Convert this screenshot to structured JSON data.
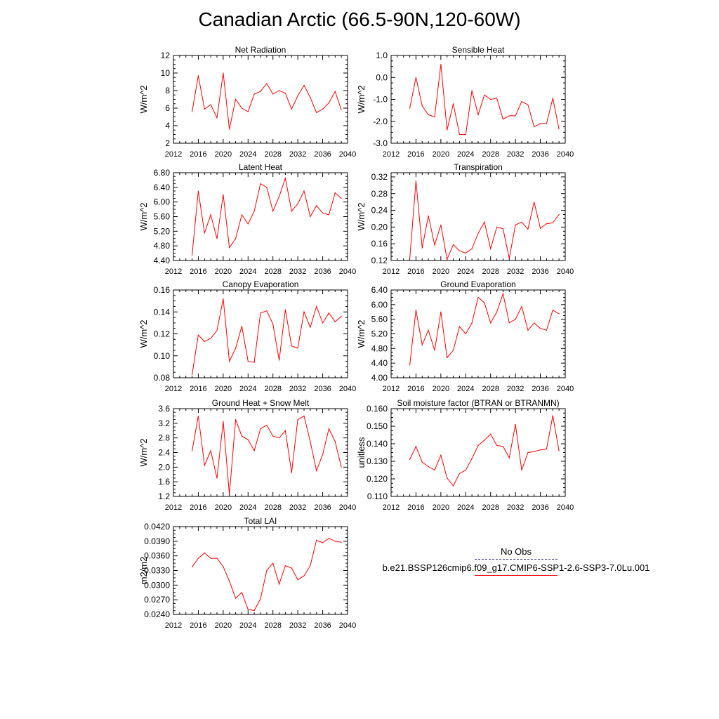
{
  "page_title": "Canadian Arctic (66.5-90N,120-60W)",
  "legend": {
    "obs_label": "No Obs",
    "model_label": "b.e21.BSSP126cmip6.f09_g17.CMIP6-SSP1-2.6-SSP3-7.0Lu.001",
    "obs_color": "#3a3aa0",
    "model_color": "#ff0000"
  },
  "chart_data": [
    {
      "type": "line",
      "title": "Net Radiation",
      "ylabel": "W/m^2",
      "xlim": [
        2012,
        2040
      ],
      "xticks": [
        "2012",
        "2016",
        "2020",
        "2024",
        "2028",
        "2032",
        "2036",
        "2040"
      ],
      "ylim": [
        2,
        12
      ],
      "yticks": [
        "2",
        "4",
        "6",
        "8",
        "10",
        "12"
      ],
      "series": [
        {
          "color": "#ff0000",
          "x": [
            2015,
            2016,
            2017,
            2018,
            2019,
            2020,
            2021,
            2022,
            2023,
            2024,
            2025,
            2026,
            2027,
            2028,
            2029,
            2030,
            2031,
            2032,
            2033,
            2034,
            2035,
            2036,
            2037,
            2038,
            2039
          ],
          "values": [
            5.6,
            9.7,
            5.9,
            6.4,
            4.9,
            10.0,
            3.6,
            7.0,
            6.0,
            5.6,
            7.6,
            7.9,
            8.8,
            7.6,
            8.0,
            7.7,
            5.9,
            7.4,
            8.6,
            7.2,
            5.5,
            5.9,
            6.6,
            7.9,
            5.8
          ]
        }
      ]
    },
    {
      "type": "line",
      "title": "Sensible Heat",
      "ylabel": "W/m^2",
      "xlim": [
        2012,
        2040
      ],
      "xticks": [
        "2012",
        "2016",
        "2020",
        "2024",
        "2028",
        "2032",
        "2036",
        "2040"
      ],
      "ylim": [
        -3.0,
        1.0
      ],
      "yticks": [
        "-3.0",
        "-2.0",
        "-1.0",
        "0.0",
        "1.0"
      ],
      "series": [
        {
          "color": "#ff0000",
          "x": [
            2015,
            2016,
            2017,
            2018,
            2019,
            2020,
            2021,
            2022,
            2023,
            2024,
            2025,
            2026,
            2027,
            2028,
            2029,
            2030,
            2031,
            2032,
            2033,
            2034,
            2035,
            2036,
            2037,
            2038,
            2039
          ],
          "values": [
            -1.4,
            0.0,
            -1.3,
            -1.7,
            -1.8,
            0.6,
            -2.4,
            -1.2,
            -2.6,
            -2.6,
            -0.6,
            -1.7,
            -0.8,
            -1.0,
            -0.95,
            -1.9,
            -1.75,
            -1.75,
            -1.1,
            -1.25,
            -2.25,
            -2.1,
            -2.1,
            -0.95,
            -2.35
          ]
        }
      ]
    },
    {
      "type": "line",
      "title": "Latent Heat",
      "ylabel": "W/m^2",
      "xlim": [
        2012,
        2040
      ],
      "xticks": [
        "2012",
        "2016",
        "2020",
        "2024",
        "2028",
        "2032",
        "2036",
        "2040"
      ],
      "ylim": [
        4.4,
        6.8
      ],
      "yticks": [
        "4.40",
        "4.80",
        "5.20",
        "5.60",
        "6.00",
        "6.40",
        "6.80"
      ],
      "series": [
        {
          "color": "#ff0000",
          "x": [
            2015,
            2016,
            2017,
            2018,
            2019,
            2020,
            2021,
            2022,
            2023,
            2024,
            2025,
            2026,
            2027,
            2028,
            2029,
            2030,
            2031,
            2032,
            2033,
            2034,
            2035,
            2036,
            2037,
            2038,
            2039
          ],
          "values": [
            4.55,
            6.3,
            5.15,
            5.65,
            5.0,
            6.2,
            4.75,
            5.0,
            5.65,
            5.4,
            5.75,
            6.5,
            6.4,
            5.75,
            6.15,
            6.65,
            5.75,
            5.95,
            6.3,
            5.6,
            5.9,
            5.7,
            5.65,
            6.25,
            6.1
          ]
        }
      ]
    },
    {
      "type": "line",
      "title": "Transpiration",
      "ylabel": "W/m^2",
      "xlim": [
        2012,
        2040
      ],
      "xticks": [
        "2012",
        "2016",
        "2020",
        "2024",
        "2028",
        "2032",
        "2036",
        "2040"
      ],
      "ylim": [
        0.12,
        0.33
      ],
      "yticks": [
        "0.12",
        "0.16",
        "0.20",
        "0.24",
        "0.28",
        "0.32"
      ],
      "series": [
        {
          "color": "#ff0000",
          "x": [
            2015,
            2016,
            2017,
            2018,
            2019,
            2020,
            2021,
            2022,
            2023,
            2024,
            2025,
            2026,
            2027,
            2028,
            2029,
            2030,
            2031,
            2032,
            2033,
            2034,
            2035,
            2036,
            2037,
            2038,
            2039
          ],
          "values": [
            0.125,
            0.31,
            0.15,
            0.227,
            0.157,
            0.205,
            0.123,
            0.158,
            0.143,
            0.138,
            0.148,
            0.185,
            0.212,
            0.148,
            0.2,
            0.196,
            0.125,
            0.205,
            0.212,
            0.195,
            0.26,
            0.197,
            0.208,
            0.21,
            0.23
          ]
        }
      ]
    },
    {
      "type": "line",
      "title": "Canopy Evaporation",
      "ylabel": "W/m^2",
      "xlim": [
        2012,
        2040
      ],
      "xticks": [
        "2012",
        "2016",
        "2020",
        "2024",
        "2028",
        "2032",
        "2036",
        "2040"
      ],
      "ylim": [
        0.08,
        0.16
      ],
      "yticks": [
        "0.08",
        "0.10",
        "0.12",
        "0.14",
        "0.16"
      ],
      "series": [
        {
          "color": "#ff0000",
          "x": [
            2015,
            2016,
            2017,
            2018,
            2019,
            2020,
            2021,
            2022,
            2023,
            2024,
            2025,
            2026,
            2027,
            2028,
            2029,
            2030,
            2031,
            2032,
            2033,
            2034,
            2035,
            2036,
            2037,
            2038,
            2039
          ],
          "values": [
            0.083,
            0.119,
            0.113,
            0.116,
            0.123,
            0.152,
            0.095,
            0.107,
            0.127,
            0.095,
            0.094,
            0.139,
            0.141,
            0.129,
            0.096,
            0.142,
            0.109,
            0.107,
            0.14,
            0.126,
            0.145,
            0.13,
            0.139,
            0.131,
            0.136
          ]
        }
      ]
    },
    {
      "type": "line",
      "title": "Ground Evaporation",
      "ylabel": "W/m^2",
      "xlim": [
        2012,
        2040
      ],
      "xticks": [
        "2012",
        "2016",
        "2020",
        "2024",
        "2028",
        "2032",
        "2036",
        "2040"
      ],
      "ylim": [
        4.0,
        6.4
      ],
      "yticks": [
        "4.00",
        "4.40",
        "4.80",
        "5.20",
        "5.60",
        "6.00",
        "6.40"
      ],
      "series": [
        {
          "color": "#ff0000",
          "x": [
            2015,
            2016,
            2017,
            2018,
            2019,
            2020,
            2021,
            2022,
            2023,
            2024,
            2025,
            2026,
            2027,
            2028,
            2029,
            2030,
            2031,
            2032,
            2033,
            2034,
            2035,
            2036,
            2037,
            2038,
            2039
          ],
          "values": [
            4.35,
            5.85,
            4.9,
            5.3,
            4.75,
            5.8,
            4.55,
            4.75,
            5.4,
            5.2,
            5.5,
            6.2,
            6.05,
            5.5,
            5.8,
            6.3,
            5.5,
            5.6,
            5.95,
            5.3,
            5.5,
            5.35,
            5.3,
            5.85,
            5.75
          ]
        }
      ]
    },
    {
      "type": "line",
      "title": "Ground Heat + Snow Melt",
      "ylabel": "W/m^2",
      "xlim": [
        2012,
        2040
      ],
      "xticks": [
        "2012",
        "2016",
        "2020",
        "2024",
        "2028",
        "2032",
        "2036",
        "2040"
      ],
      "ylim": [
        1.2,
        3.6
      ],
      "yticks": [
        "1.2",
        "1.6",
        "2.0",
        "2.4",
        "2.8",
        "3.2",
        "3.6"
      ],
      "series": [
        {
          "color": "#ff0000",
          "x": [
            2015,
            2016,
            2017,
            2018,
            2019,
            2020,
            2021,
            2022,
            2023,
            2024,
            2025,
            2026,
            2027,
            2028,
            2029,
            2030,
            2031,
            2032,
            2033,
            2034,
            2035,
            2036,
            2037,
            2038,
            2039
          ],
          "values": [
            2.45,
            3.4,
            2.05,
            2.45,
            1.7,
            3.25,
            1.25,
            3.3,
            2.85,
            2.75,
            2.45,
            3.05,
            3.15,
            2.85,
            2.8,
            3.0,
            1.85,
            3.3,
            3.4,
            2.7,
            1.9,
            2.35,
            3.05,
            2.7,
            2.0
          ]
        }
      ]
    },
    {
      "type": "line",
      "title": "Soil moisture factor (BTRAN or BTRANMN)",
      "ylabel": "unitless",
      "xlim": [
        2012,
        2040
      ],
      "xticks": [
        "2012",
        "2016",
        "2020",
        "2024",
        "2028",
        "2032",
        "2036",
        "2040"
      ],
      "ylim": [
        0.11,
        0.16
      ],
      "yticks": [
        "0.110",
        "0.120",
        "0.130",
        "0.140",
        "0.150",
        "0.160"
      ],
      "series": [
        {
          "color": "#ff0000",
          "x": [
            2015,
            2016,
            2017,
            2018,
            2019,
            2020,
            2021,
            2022,
            2023,
            2024,
            2025,
            2026,
            2027,
            2028,
            2029,
            2030,
            2031,
            2032,
            2033,
            2034,
            2035,
            2036,
            2037,
            2038,
            2039
          ],
          "values": [
            0.131,
            0.1385,
            0.1295,
            0.127,
            0.125,
            0.1335,
            0.1205,
            0.116,
            0.123,
            0.125,
            0.1315,
            0.139,
            0.142,
            0.1455,
            0.139,
            0.1385,
            0.132,
            0.151,
            0.125,
            0.135,
            0.1355,
            0.1365,
            0.137,
            0.156,
            0.136
          ]
        }
      ]
    },
    {
      "type": "line",
      "title": "Total LAI",
      "ylabel": "m2/m2",
      "xlim": [
        2012,
        2040
      ],
      "xticks": [
        "2012",
        "2016",
        "2020",
        "2024",
        "2028",
        "2032",
        "2036",
        "2040"
      ],
      "ylim": [
        0.024,
        0.042
      ],
      "yticks": [
        "0.0240",
        "0.0270",
        "0.0300",
        "0.0330",
        "0.0360",
        "0.0390",
        "0.0420"
      ],
      "series": [
        {
          "color": "#ff0000",
          "x": [
            2015,
            2016,
            2017,
            2018,
            2019,
            2020,
            2021,
            2022,
            2023,
            2024,
            2025,
            2026,
            2027,
            2028,
            2029,
            2030,
            2031,
            2032,
            2033,
            2034,
            2035,
            2036,
            2037,
            2038,
            2039
          ],
          "values": [
            0.0337,
            0.0355,
            0.0366,
            0.0355,
            0.0355,
            0.0338,
            0.0308,
            0.0273,
            0.0285,
            0.025,
            0.0248,
            0.0272,
            0.033,
            0.0345,
            0.0302,
            0.034,
            0.0335,
            0.0311,
            0.0319,
            0.034,
            0.0392,
            0.0387,
            0.0396,
            0.039,
            0.0388
          ]
        }
      ]
    }
  ]
}
